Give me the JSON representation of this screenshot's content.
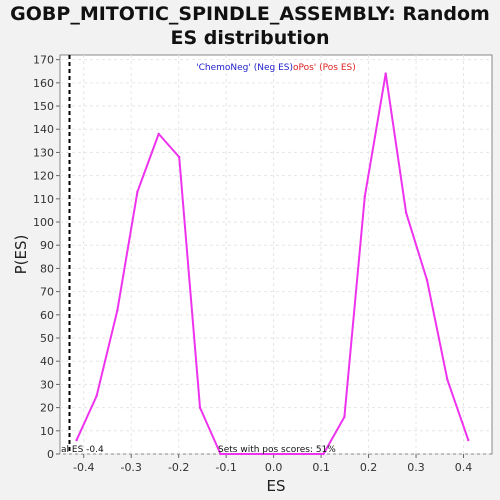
{
  "chart_data": {
    "type": "line",
    "title": "GOBP_MITOTIC_SPINDLE_ASSEMBLY: Random\nES distribution",
    "xlabel": "ES",
    "ylabel": "P(ES)",
    "xlim": [
      -0.45,
      0.46
    ],
    "ylim": [
      0,
      172
    ],
    "xticks": [
      -0.4,
      -0.3,
      -0.2,
      -0.1,
      0.0,
      0.1,
      0.2,
      0.3,
      0.4
    ],
    "xtick_labels": [
      "-0.4",
      "-0.3",
      "-0.2",
      "-0.1",
      "0.0",
      "0.1",
      "0.2",
      "0.3",
      "0.4"
    ],
    "yticks": [
      0,
      10,
      20,
      30,
      40,
      50,
      60,
      70,
      80,
      90,
      100,
      110,
      120,
      130,
      140,
      150,
      160,
      170
    ],
    "ytick_labels": [
      "0",
      "10",
      "20",
      "30",
      "40",
      "50",
      "60",
      "70",
      "80",
      "90",
      "100",
      "110",
      "120",
      "130",
      "140",
      "150",
      "160",
      "170"
    ],
    "grid": true,
    "series": [
      {
        "color": "#ee33ee",
        "x": [
          -0.415,
          -0.373,
          -0.329,
          -0.287,
          -0.242,
          -0.199,
          -0.155,
          -0.112,
          -0.068,
          -0.025,
          0.018,
          0.062,
          0.105,
          0.149,
          0.192,
          0.236,
          0.279,
          0.323,
          0.366,
          0.41
        ],
        "y": [
          6,
          25,
          62,
          113,
          138,
          128,
          20,
          0,
          0,
          0,
          0,
          0,
          0,
          16,
          111,
          164,
          104,
          75,
          32,
          6
        ]
      }
    ],
    "vline": {
      "x": -0.43,
      "style": "dashed",
      "color": "#000000"
    },
    "legend": {
      "placement": "top-center",
      "neg_label": "'ChemoNeg' (Neg ES)",
      "neg_color": "#2222cc",
      "pos_label": "oPos' (Pos ES)",
      "pos_color": "#dd2222"
    },
    "annotations": {
      "actual_es": "al ES -0.4",
      "pos_fraction": "Sets with pos scores: 51%"
    }
  }
}
